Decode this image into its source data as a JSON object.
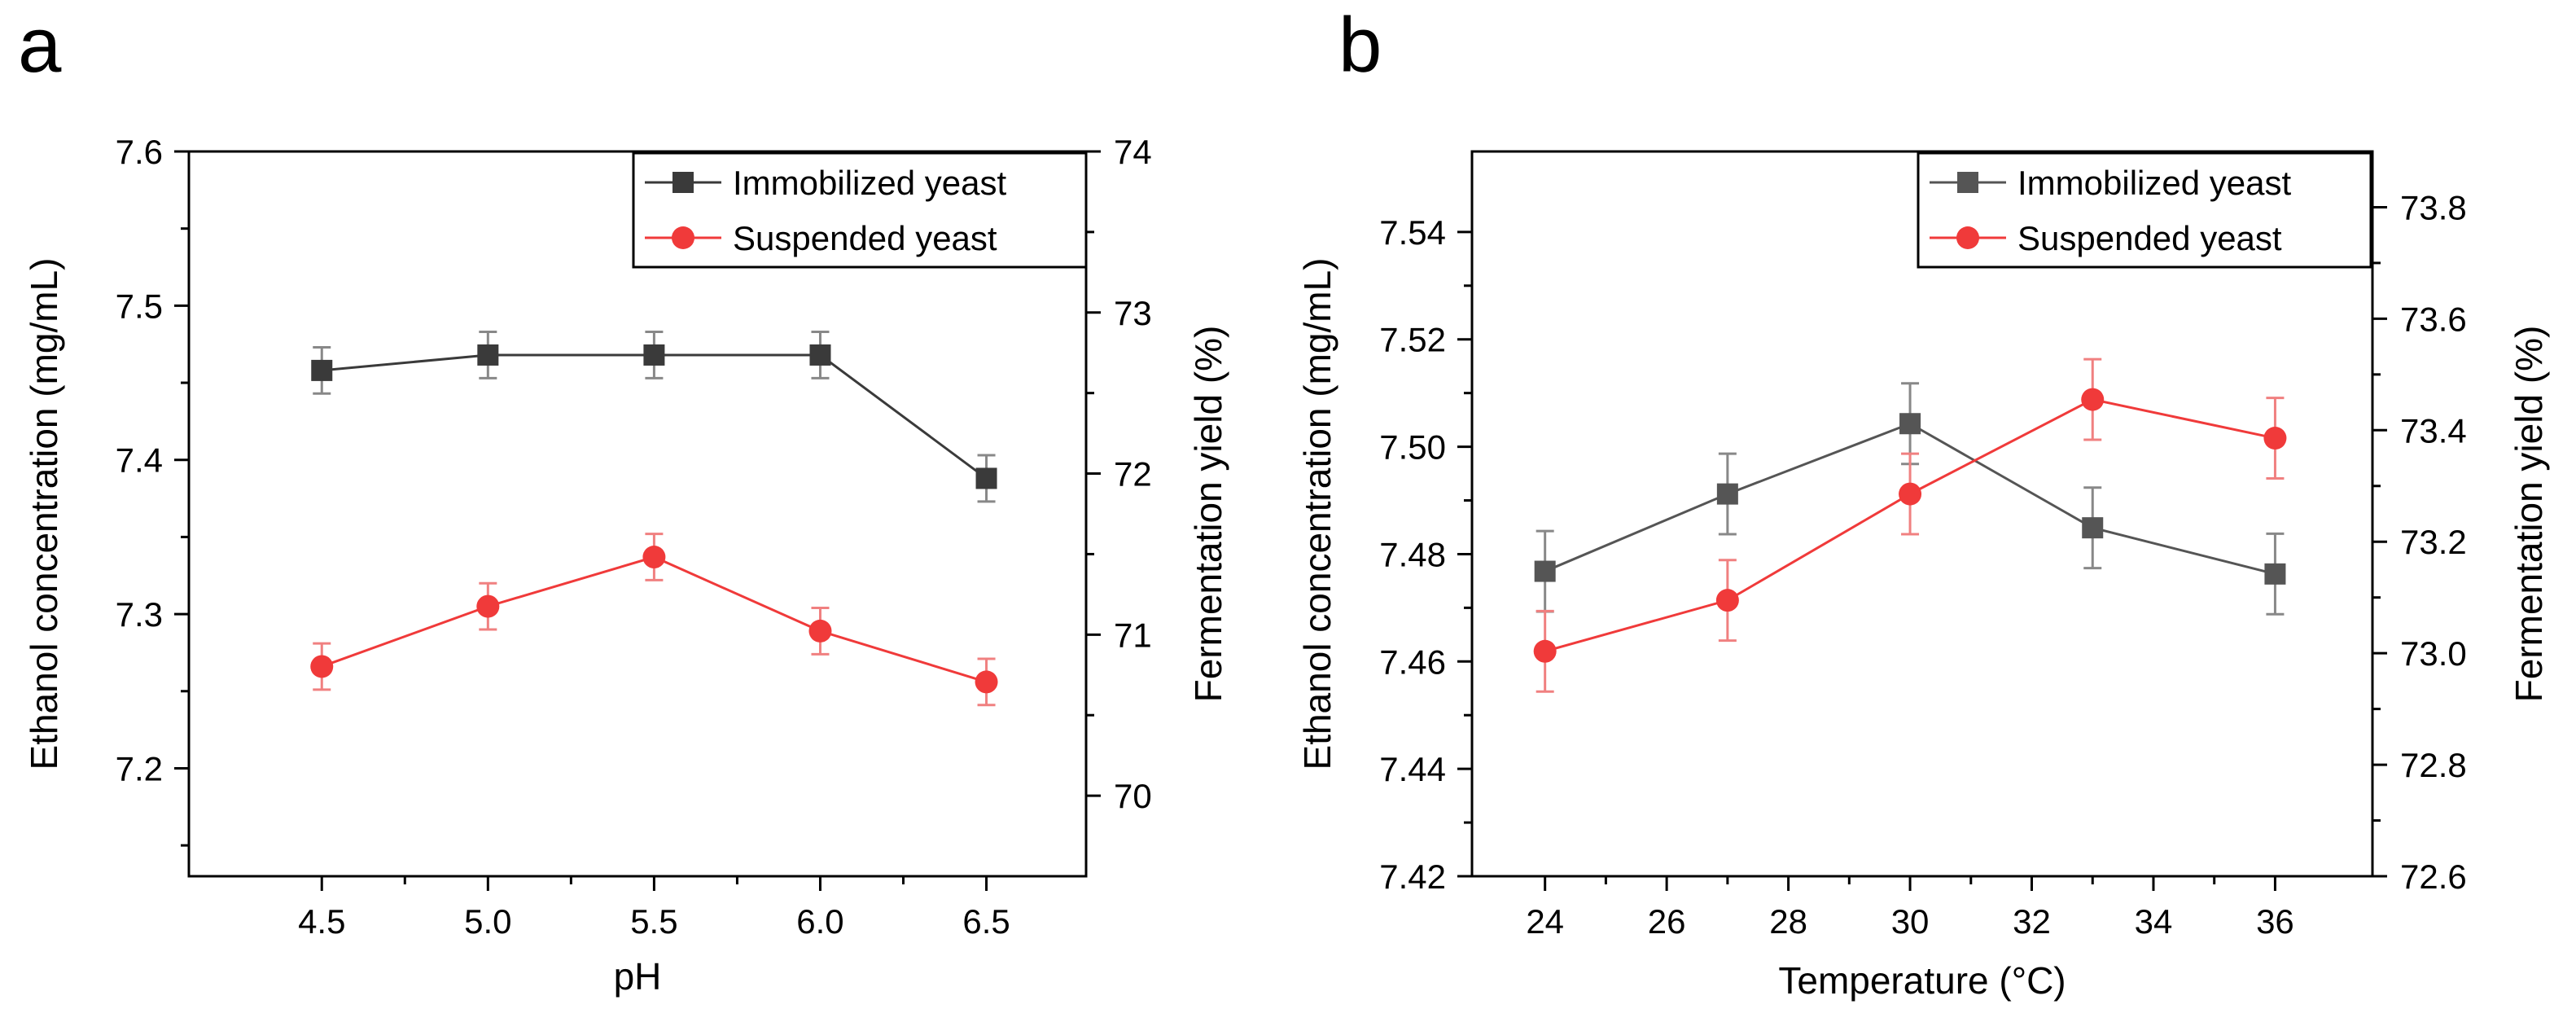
{
  "chart_data": [
    {
      "panel": "a",
      "type": "line",
      "title": "",
      "xlabel": "pH",
      "ylabel": "Ethanol concentration (mg/mL)",
      "y2label": "Fermentation yield (%)",
      "x": [
        4.5,
        5.0,
        5.5,
        6.0,
        6.5
      ],
      "xlim": [
        4.1,
        6.8
      ],
      "xticks": [
        4.5,
        5.0,
        5.5,
        6.0,
        6.5
      ],
      "xtick_labels": [
        "4.5",
        "5.0",
        "5.5",
        "6.0",
        "6.5"
      ],
      "ylim": [
        7.13,
        7.6
      ],
      "yticks": [
        7.2,
        7.3,
        7.4,
        7.5,
        7.6
      ],
      "ytick_labels": [
        "7.2",
        "7.3",
        "7.4",
        "7.5",
        "7.6"
      ],
      "y2lim": [
        69.5,
        74.0
      ],
      "y2ticks": [
        70,
        71,
        72,
        73,
        74
      ],
      "y2tick_labels": [
        "70",
        "71",
        "72",
        "73",
        "74"
      ],
      "legend_position": "top-right",
      "series": [
        {
          "name": "Immobilized yeast",
          "color": "#3a3a3a",
          "marker": "square",
          "values": [
            7.458,
            7.468,
            7.468,
            7.468,
            7.388
          ],
          "errors": [
            0.015,
            0.015,
            0.015,
            0.015,
            0.015
          ]
        },
        {
          "name": "Suspended yeast",
          "color": "#f03a3a",
          "marker": "circle",
          "values": [
            7.266,
            7.305,
            7.337,
            7.289,
            7.256
          ],
          "errors": [
            0.015,
            0.015,
            0.015,
            0.015,
            0.015
          ]
        }
      ]
    },
    {
      "panel": "b",
      "type": "line",
      "title": "",
      "xlabel": "Temperature (°C)",
      "ylabel": "Ethanol concentration (mg/mL)",
      "y2label": "Fermentation yield (%)",
      "x": [
        24,
        27,
        30,
        33,
        36
      ],
      "xlim": [
        22.8,
        37.6
      ],
      "xticks": [
        24,
        26,
        28,
        30,
        32,
        34,
        36
      ],
      "xtick_labels": [
        "24",
        "26",
        "28",
        "30",
        "32",
        "34",
        "36"
      ],
      "ylim": [
        7.42,
        7.555
      ],
      "yticks": [
        7.42,
        7.44,
        7.46,
        7.48,
        7.5,
        7.52,
        7.54
      ],
      "ytick_labels": [
        "7.42",
        "7.44",
        "7.46",
        "7.48",
        "7.50",
        "7.52",
        "7.54"
      ],
      "y2lim": [
        72.6,
        73.9
      ],
      "y2ticks": [
        72.6,
        72.8,
        73.0,
        73.2,
        73.4,
        73.6,
        73.8
      ],
      "y2tick_labels": [
        "72.6",
        "72.8",
        "73.0",
        "73.2",
        "73.4",
        "73.6",
        "73.8"
      ],
      "legend_position": "top-right",
      "series": [
        {
          "name": "Immobilized yeast",
          "color": "#555555",
          "marker": "square",
          "values": [
            7.4768,
            7.4912,
            7.5043,
            7.4849,
            7.4763
          ],
          "errors": [
            0.0075,
            0.0075,
            0.0075,
            0.0075,
            0.0075
          ]
        },
        {
          "name": "Suspended yeast",
          "color": "#f03a3a",
          "marker": "circle",
          "values": [
            7.4619,
            7.4714,
            7.4912,
            7.5088,
            7.5016
          ],
          "errors": [
            0.0075,
            0.0075,
            0.0075,
            0.0075,
            0.0075
          ]
        }
      ]
    }
  ],
  "panels": {
    "a": {
      "letter": "a"
    },
    "b": {
      "letter": "b"
    }
  }
}
